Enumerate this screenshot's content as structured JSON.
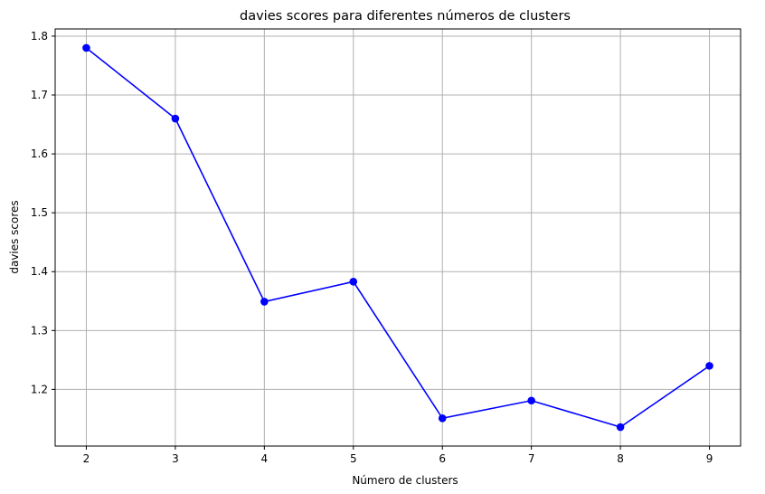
{
  "chart_data": {
    "type": "line",
    "title": "davies scores para diferentes números de clusters",
    "xlabel": "Número de clusters",
    "ylabel": "davies scores",
    "x": [
      2,
      3,
      4,
      5,
      6,
      7,
      8,
      9
    ],
    "series": [
      {
        "values": [
          1.78,
          1.66,
          1.349,
          1.383,
          1.151,
          1.181,
          1.136,
          1.24
        ]
      }
    ],
    "xticks": [
      "2",
      "3",
      "4",
      "5",
      "6",
      "7",
      "8",
      "9"
    ],
    "yticks": [
      "1.2",
      "1.3",
      "1.4",
      "1.5",
      "1.6",
      "1.7",
      "1.8"
    ],
    "xlim": [
      1.65,
      9.35
    ],
    "ylim": [
      1.1038,
      1.8122
    ],
    "grid": true,
    "marker": "circle",
    "line_color": "#0000ff",
    "grid_color": "#b0b0b0"
  }
}
